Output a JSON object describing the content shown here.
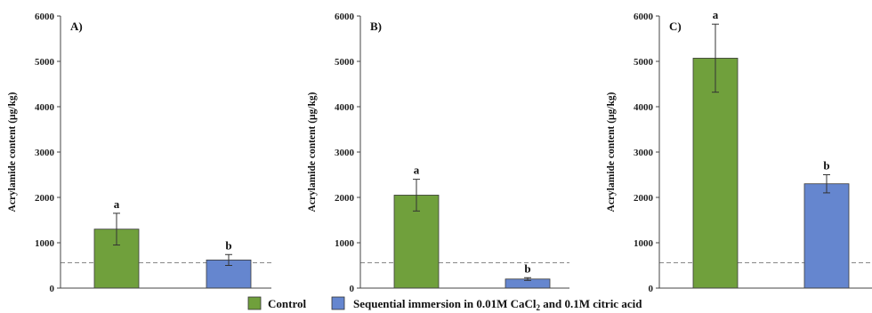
{
  "chart_data": [
    {
      "type": "bar",
      "panel_label": "A)",
      "ylabel": "Acrylamide content (μg/kg)",
      "ylim": [
        0,
        6000
      ],
      "yticks": [
        "0",
        "1000",
        "2000",
        "3000",
        "4000",
        "5000",
        "6000"
      ],
      "series": [
        {
          "values": [
            1300,
            620
          ],
          "errors": [
            350,
            120
          ],
          "letters": [
            "a",
            "b"
          ],
          "colors": [
            "#70a03c",
            "#6586cf"
          ]
        }
      ],
      "reference_line": 560
    },
    {
      "type": "bar",
      "panel_label": "B)",
      "ylabel": "Acrylamide content (μg/kg)",
      "ylim": [
        0,
        6000
      ],
      "yticks": [
        "0",
        "1000",
        "2000",
        "3000",
        "4000",
        "5000",
        "6000"
      ],
      "series": [
        {
          "values": [
            2050,
            200
          ],
          "errors": [
            350,
            30
          ],
          "letters": [
            "a",
            "b"
          ],
          "colors": [
            "#70a03c",
            "#6586cf"
          ]
        }
      ],
      "reference_line": 560
    },
    {
      "type": "bar",
      "panel_label": "C)",
      "ylabel": "Acrylamide content (μg/kg)",
      "ylim": [
        0,
        6000
      ],
      "yticks": [
        "0",
        "1000",
        "2000",
        "3000",
        "4000",
        "5000",
        "6000"
      ],
      "series": [
        {
          "values": [
            5070,
            2300
          ],
          "errors": [
            750,
            200
          ],
          "letters": [
            "a",
            "b"
          ],
          "colors": [
            "#70a03c",
            "#6586cf"
          ]
        }
      ],
      "reference_line": 560
    }
  ],
  "legend": {
    "items": [
      {
        "label": "Control",
        "color": "#70a03c"
      },
      {
        "label_pre": "Sequential immersion in 0.01M CaCl",
        "label_sub": "2",
        "label_post": " and 0.1M citric acid",
        "color": "#6586cf"
      }
    ]
  },
  "colors": {
    "control": "#70a03c",
    "treatment": "#6586cf",
    "reference": "#888888"
  }
}
